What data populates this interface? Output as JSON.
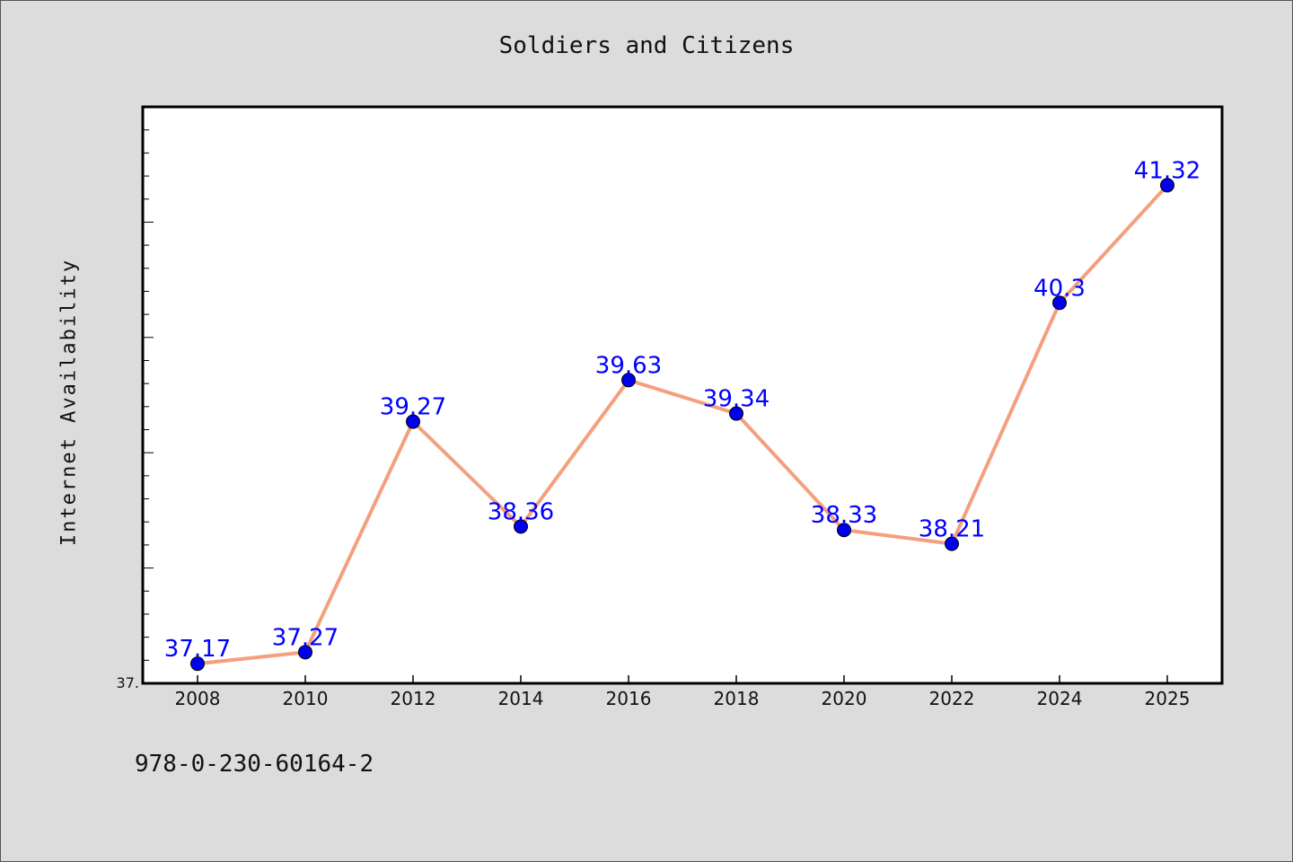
{
  "chart_data": {
    "type": "line",
    "title": "Soldiers and Citizens",
    "ylabel": "Internet Availability",
    "xlabel": "",
    "ytick_labels": [
      "37."
    ],
    "categories": [
      "2008",
      "2010",
      "2012",
      "2014",
      "2016",
      "2018",
      "2020",
      "2022",
      "2024",
      "2025"
    ],
    "series": [
      {
        "values": [
          37.17,
          37.27,
          39.27,
          38.36,
          39.63,
          39.34,
          38.33,
          38.21,
          40.3,
          41.32
        ],
        "data_labels": [
          "37.17",
          "37.27",
          "39.27",
          "38.36",
          "39.63",
          "39.34",
          "38.33",
          "38.21",
          "40.3",
          "41.32"
        ]
      }
    ],
    "ylim": [
      37.0,
      42.0
    ],
    "grid": false,
    "colors": {
      "line": "#f4a07e",
      "marker": "#0000ee",
      "data_label": "#0000ff",
      "background": "#dcdcdc",
      "plot_background": "#ffffff"
    }
  },
  "footnote": "978-0-230-60164-2"
}
